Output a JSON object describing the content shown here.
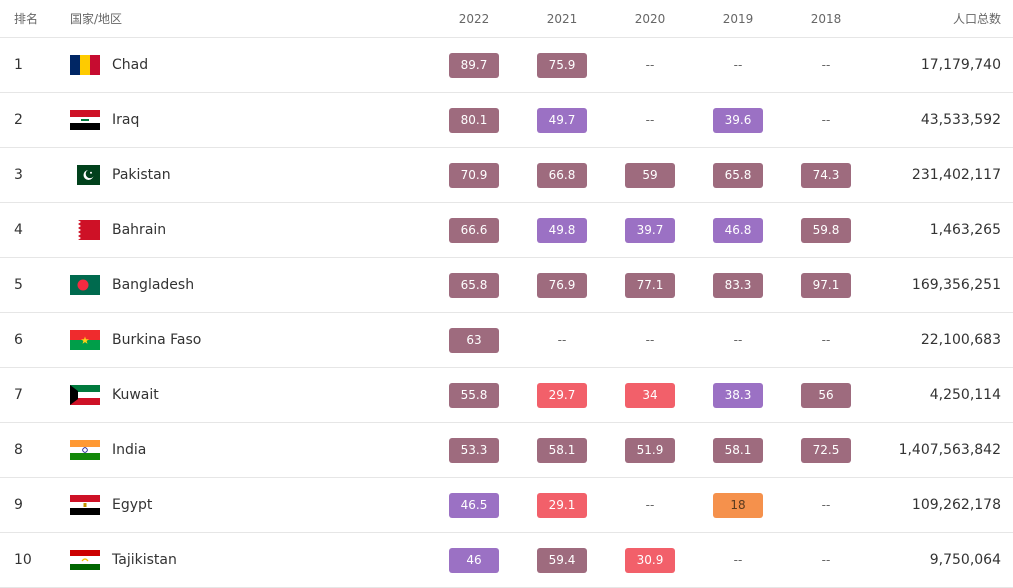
{
  "header": {
    "rank": "排名",
    "country": "国家/地区",
    "years": [
      "2022",
      "2021",
      "2020",
      "2019",
      "2018"
    ],
    "population": "人口总数"
  },
  "colors": {
    "dark": "#9e6b7e",
    "purple": "#9b71c4",
    "red": "#f2606a",
    "orange": "#f5914c"
  },
  "rows": [
    {
      "rank": "1",
      "name": "Chad",
      "flag": "chad-flag-icon",
      "vals": [
        {
          "v": "89.7",
          "c": "dark"
        },
        {
          "v": "75.9",
          "c": "dark"
        },
        {
          "v": "--"
        },
        {
          "v": "--"
        },
        {
          "v": "--"
        }
      ],
      "pop": "17,179,740"
    },
    {
      "rank": "2",
      "name": "Iraq",
      "flag": "iraq-flag-icon",
      "vals": [
        {
          "v": "80.1",
          "c": "dark"
        },
        {
          "v": "49.7",
          "c": "purple"
        },
        {
          "v": "--"
        },
        {
          "v": "39.6",
          "c": "purple"
        },
        {
          "v": "--"
        }
      ],
      "pop": "43,533,592"
    },
    {
      "rank": "3",
      "name": "Pakistan",
      "flag": "pakistan-flag-icon",
      "vals": [
        {
          "v": "70.9",
          "c": "dark"
        },
        {
          "v": "66.8",
          "c": "dark"
        },
        {
          "v": "59",
          "c": "dark"
        },
        {
          "v": "65.8",
          "c": "dark"
        },
        {
          "v": "74.3",
          "c": "dark"
        }
      ],
      "pop": "231,402,117"
    },
    {
      "rank": "4",
      "name": "Bahrain",
      "flag": "bahrain-flag-icon",
      "vals": [
        {
          "v": "66.6",
          "c": "dark"
        },
        {
          "v": "49.8",
          "c": "purple"
        },
        {
          "v": "39.7",
          "c": "purple"
        },
        {
          "v": "46.8",
          "c": "purple"
        },
        {
          "v": "59.8",
          "c": "dark"
        }
      ],
      "pop": "1,463,265"
    },
    {
      "rank": "5",
      "name": "Bangladesh",
      "flag": "bangladesh-flag-icon",
      "vals": [
        {
          "v": "65.8",
          "c": "dark"
        },
        {
          "v": "76.9",
          "c": "dark"
        },
        {
          "v": "77.1",
          "c": "dark"
        },
        {
          "v": "83.3",
          "c": "dark"
        },
        {
          "v": "97.1",
          "c": "dark"
        }
      ],
      "pop": "169,356,251"
    },
    {
      "rank": "6",
      "name": "Burkina Faso",
      "flag": "burkina-faso-flag-icon",
      "vals": [
        {
          "v": "63",
          "c": "dark"
        },
        {
          "v": "--"
        },
        {
          "v": "--"
        },
        {
          "v": "--"
        },
        {
          "v": "--"
        }
      ],
      "pop": "22,100,683"
    },
    {
      "rank": "7",
      "name": "Kuwait",
      "flag": "kuwait-flag-icon",
      "vals": [
        {
          "v": "55.8",
          "c": "dark"
        },
        {
          "v": "29.7",
          "c": "red"
        },
        {
          "v": "34",
          "c": "red"
        },
        {
          "v": "38.3",
          "c": "purple"
        },
        {
          "v": "56",
          "c": "dark"
        }
      ],
      "pop": "4,250,114"
    },
    {
      "rank": "8",
      "name": "India",
      "flag": "india-flag-icon",
      "vals": [
        {
          "v": "53.3",
          "c": "dark"
        },
        {
          "v": "58.1",
          "c": "dark"
        },
        {
          "v": "51.9",
          "c": "dark"
        },
        {
          "v": "58.1",
          "c": "dark"
        },
        {
          "v": "72.5",
          "c": "dark"
        }
      ],
      "pop": "1,407,563,842"
    },
    {
      "rank": "9",
      "name": "Egypt",
      "flag": "egypt-flag-icon",
      "vals": [
        {
          "v": "46.5",
          "c": "purple"
        },
        {
          "v": "29.1",
          "c": "red"
        },
        {
          "v": "--"
        },
        {
          "v": "18",
          "c": "orange"
        },
        {
          "v": "--"
        }
      ],
      "pop": "109,262,178"
    },
    {
      "rank": "10",
      "name": "Tajikistan",
      "flag": "tajikistan-flag-icon",
      "vals": [
        {
          "v": "46",
          "c": "purple"
        },
        {
          "v": "59.4",
          "c": "dark"
        },
        {
          "v": "30.9",
          "c": "red"
        },
        {
          "v": "--"
        },
        {
          "v": "--"
        }
      ],
      "pop": "9,750,064"
    }
  ]
}
